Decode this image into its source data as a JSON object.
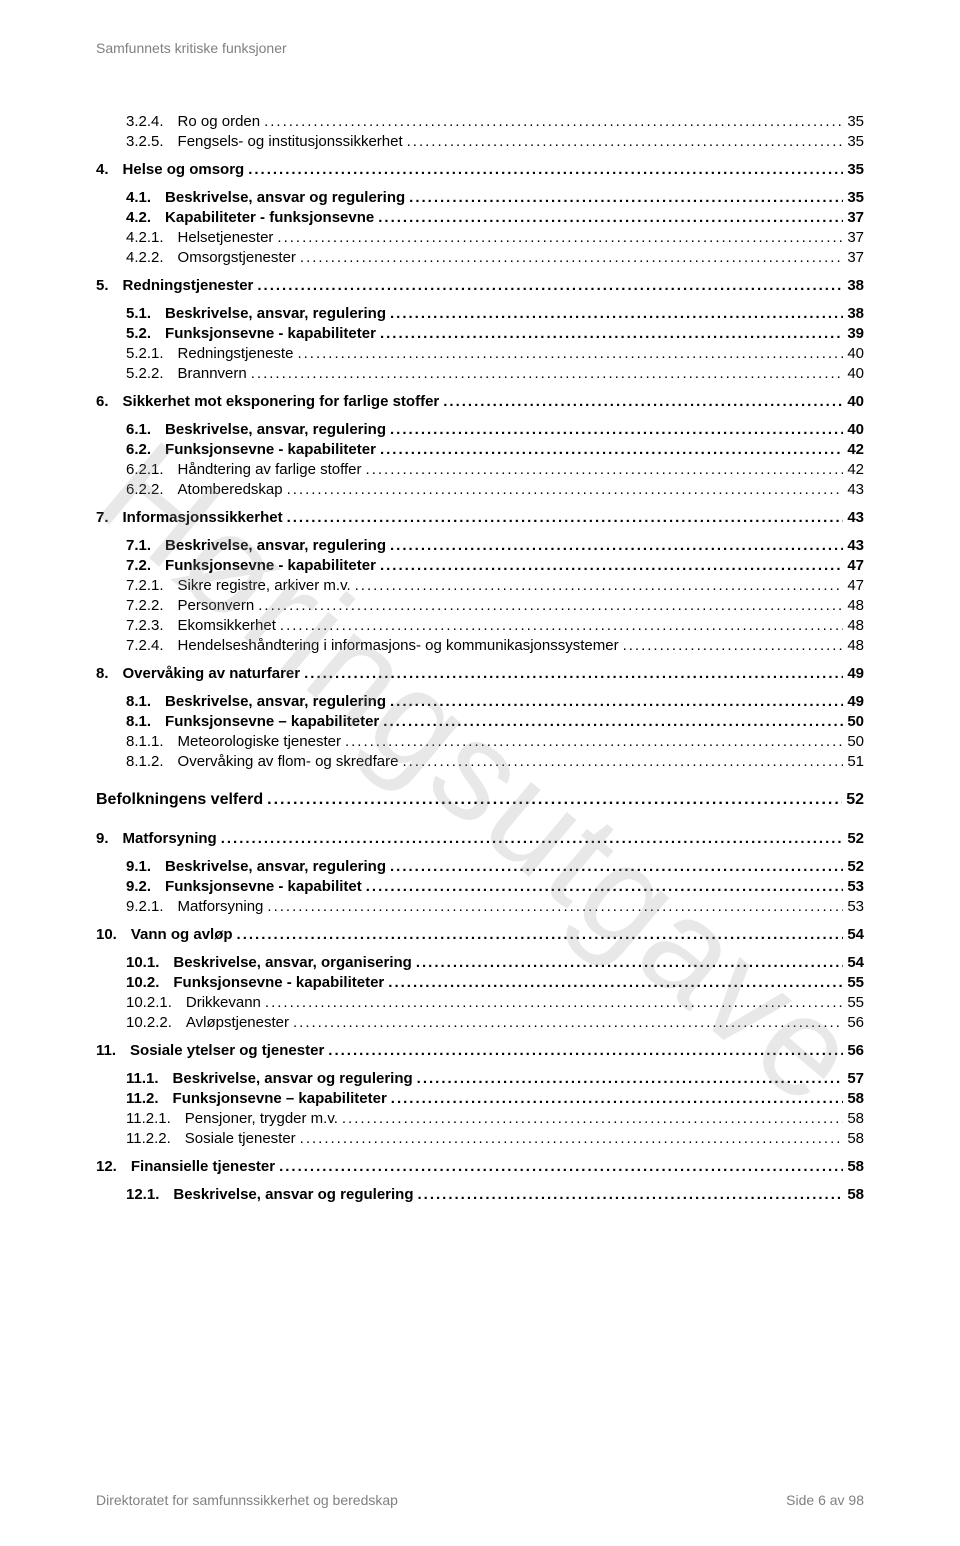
{
  "header": "Samfunnets kritiske funksjoner",
  "watermark": "Høringsutgave",
  "footer_left": "Direktoratet for samfunnssikkerhet og beredskap",
  "footer_right": "Side 6 av 98",
  "colors": {
    "text": "#000000",
    "muted": "#808080",
    "watermark": "rgba(150,150,150,0.22)",
    "background": "#ffffff"
  },
  "toc": [
    {
      "num": "3.2.4.",
      "title": "Ro og orden",
      "page": "35",
      "indent": 2,
      "bold": false
    },
    {
      "num": "3.2.5.",
      "title": "Fengsels- og institusjonssikkerhet",
      "page": "35",
      "indent": 2,
      "bold": false
    },
    {
      "spacer": "sm"
    },
    {
      "num": "4.",
      "title": "Helse og omsorg",
      "page": "35",
      "indent": 0,
      "bold": true
    },
    {
      "spacer": "sm"
    },
    {
      "num": "4.1.",
      "title": "Beskrivelse, ansvar og regulering",
      "page": "35",
      "indent": 1,
      "bold": true
    },
    {
      "num": "4.2.",
      "title": "Kapabiliteter - funksjonsevne",
      "page": "37",
      "indent": 1,
      "bold": true
    },
    {
      "num": "4.2.1.",
      "title": "Helsetjenester",
      "page": "37",
      "indent": 2,
      "bold": false
    },
    {
      "num": "4.2.2.",
      "title": "Omsorgstjenester",
      "page": "37",
      "indent": 2,
      "bold": false
    },
    {
      "spacer": "sm"
    },
    {
      "num": "5.",
      "title": "Redningstjenester",
      "page": "38",
      "indent": 0,
      "bold": true
    },
    {
      "spacer": "sm"
    },
    {
      "num": "5.1.",
      "title": "Beskrivelse, ansvar, regulering",
      "page": "38",
      "indent": 1,
      "bold": true
    },
    {
      "num": "5.2.",
      "title": "Funksjonsevne - kapabiliteter",
      "page": "39",
      "indent": 1,
      "bold": true
    },
    {
      "num": "5.2.1.",
      "title": "Redningstjeneste",
      "page": "40",
      "indent": 2,
      "bold": false
    },
    {
      "num": "5.2.2.",
      "title": "Brannvern",
      "page": "40",
      "indent": 2,
      "bold": false
    },
    {
      "spacer": "sm"
    },
    {
      "num": "6.",
      "title": "Sikkerhet mot eksponering for farlige stoffer",
      "page": "40",
      "indent": 0,
      "bold": true
    },
    {
      "spacer": "sm"
    },
    {
      "num": "6.1.",
      "title": "Beskrivelse, ansvar, regulering",
      "page": "40",
      "indent": 1,
      "bold": true
    },
    {
      "num": "6.2.",
      "title": "Funksjonsevne - kapabiliteter",
      "page": "42",
      "indent": 1,
      "bold": true
    },
    {
      "num": "6.2.1.",
      "title": "Håndtering av farlige stoffer",
      "page": "42",
      "indent": 2,
      "bold": false
    },
    {
      "num": "6.2.2.",
      "title": "Atomberedskap",
      "page": "43",
      "indent": 2,
      "bold": false
    },
    {
      "spacer": "sm"
    },
    {
      "num": "7.",
      "title": "Informasjonssikkerhet",
      "page": "43",
      "indent": 0,
      "bold": true
    },
    {
      "spacer": "sm"
    },
    {
      "num": "7.1.",
      "title": "Beskrivelse, ansvar, regulering",
      "page": "43",
      "indent": 1,
      "bold": true
    },
    {
      "num": "7.2.",
      "title": "Funksjonsevne - kapabiliteter",
      "page": "47",
      "indent": 1,
      "bold": true
    },
    {
      "num": "7.2.1.",
      "title": "Sikre registre, arkiver m.v.",
      "page": "47",
      "indent": 2,
      "bold": false
    },
    {
      "num": "7.2.2.",
      "title": "Personvern",
      "page": "48",
      "indent": 2,
      "bold": false
    },
    {
      "num": "7.2.3.",
      "title": "Ekomsikkerhet",
      "page": "48",
      "indent": 2,
      "bold": false
    },
    {
      "num": "7.2.4.",
      "title": "Hendelseshåndtering i informasjons- og kommunikasjonssystemer",
      "page": "48",
      "indent": 2,
      "bold": false
    },
    {
      "spacer": "sm"
    },
    {
      "num": "8.",
      "title": "Overvåking av naturfarer",
      "page": "49",
      "indent": 0,
      "bold": true
    },
    {
      "spacer": "sm"
    },
    {
      "num": "8.1.",
      "title": "Beskrivelse, ansvar, regulering",
      "page": "49",
      "indent": 1,
      "bold": true
    },
    {
      "num": "8.1.",
      "title": "Funksjonsevne – kapabiliteter",
      "page": "50",
      "indent": 1,
      "bold": true
    },
    {
      "num": "8.1.1.",
      "title": "Meteorologiske tjenester",
      "page": "50",
      "indent": 2,
      "bold": false
    },
    {
      "num": "8.1.2.",
      "title": "Overvåking av flom- og skredfare",
      "page": "51",
      "indent": 2,
      "bold": false
    },
    {
      "spacer": "md"
    },
    {
      "num": "",
      "title": "Befolkningens velferd",
      "page": "52",
      "indent": 0,
      "bold": true,
      "section": true
    },
    {
      "spacer": "md"
    },
    {
      "num": "9.",
      "title": "Matforsyning",
      "page": "52",
      "indent": 0,
      "bold": true
    },
    {
      "spacer": "sm"
    },
    {
      "num": "9.1.",
      "title": "Beskrivelse, ansvar, regulering",
      "page": "52",
      "indent": 1,
      "bold": true
    },
    {
      "num": "9.2.",
      "title": "Funksjonsevne - kapabilitet",
      "page": "53",
      "indent": 1,
      "bold": true
    },
    {
      "num": "9.2.1.",
      "title": "Matforsyning",
      "page": "53",
      "indent": 2,
      "bold": false
    },
    {
      "spacer": "sm"
    },
    {
      "num": "10.",
      "title": "Vann og avløp",
      "page": "54",
      "indent": 0,
      "bold": true
    },
    {
      "spacer": "sm"
    },
    {
      "num": "10.1.",
      "title": "Beskrivelse, ansvar, organisering",
      "page": "54",
      "indent": 1,
      "bold": true
    },
    {
      "num": "10.2.",
      "title": "Funksjonsevne - kapabiliteter",
      "page": "55",
      "indent": 1,
      "bold": true
    },
    {
      "num": "10.2.1.",
      "title": "Drikkevann",
      "page": "55",
      "indent": 2,
      "bold": false
    },
    {
      "num": "10.2.2.",
      "title": "Avløpstjenester",
      "page": "56",
      "indent": 2,
      "bold": false
    },
    {
      "spacer": "sm"
    },
    {
      "num": "11.",
      "title": "Sosiale ytelser og tjenester",
      "page": "56",
      "indent": 0,
      "bold": true
    },
    {
      "spacer": "sm"
    },
    {
      "num": "11.1.",
      "title": "Beskrivelse, ansvar og regulering",
      "page": "57",
      "indent": 1,
      "bold": true
    },
    {
      "num": "11.2.",
      "title": "Funksjonsevne – kapabiliteter",
      "page": "58",
      "indent": 1,
      "bold": true
    },
    {
      "num": "11.2.1.",
      "title": "Pensjoner, trygder m.v.",
      "page": "58",
      "indent": 2,
      "bold": false
    },
    {
      "num": "11.2.2.",
      "title": "Sosiale tjenester",
      "page": "58",
      "indent": 2,
      "bold": false
    },
    {
      "spacer": "sm"
    },
    {
      "num": "12.",
      "title": "Finansielle tjenester",
      "page": "58",
      "indent": 0,
      "bold": true
    },
    {
      "spacer": "sm"
    },
    {
      "num": "12.1.",
      "title": "Beskrivelse, ansvar og regulering",
      "page": "58",
      "indent": 1,
      "bold": true
    }
  ]
}
